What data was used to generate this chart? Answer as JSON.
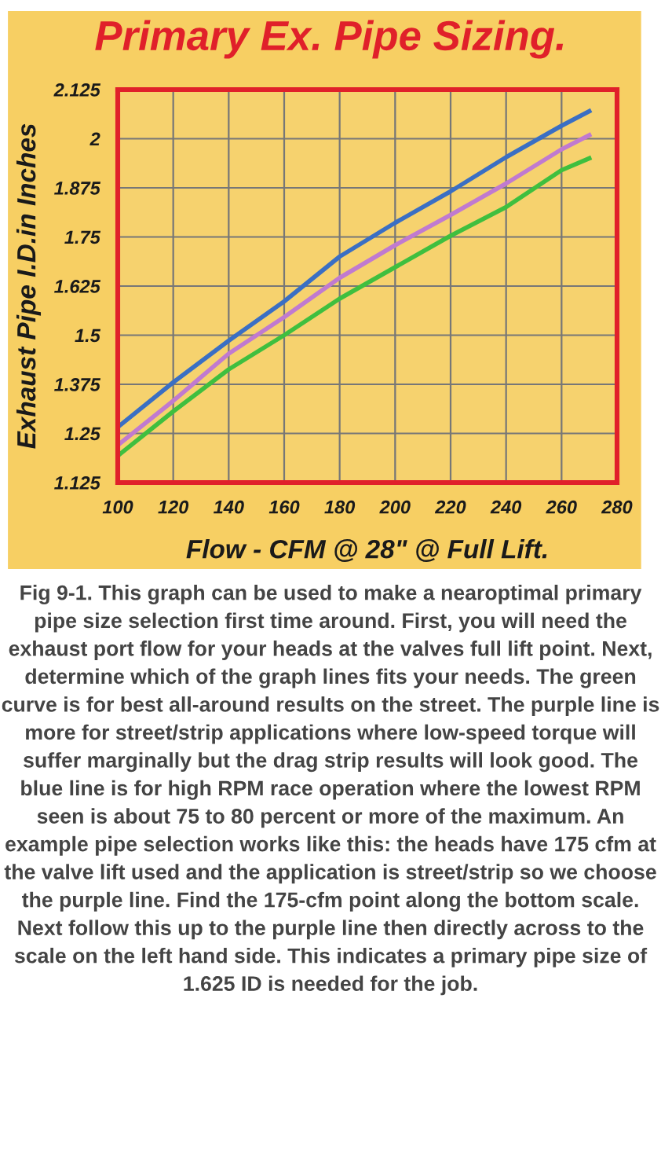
{
  "chart_data": {
    "type": "line",
    "title": "Primary Ex. Pipe Sizing.",
    "xlabel": "Flow - CFM @ 28\" @ Full Lift.",
    "ylabel": "Exhaust Pipe I.D.in Inches",
    "x": [
      100,
      120,
      140,
      160,
      180,
      200,
      220,
      240,
      260,
      270
    ],
    "series": [
      {
        "color": "#3a6fc4",
        "values": [
          1.266,
          1.38,
          1.486,
          1.586,
          1.7,
          1.786,
          1.866,
          1.953,
          2.033,
          2.07
        ]
      },
      {
        "color": "#c07ad0",
        "values": [
          1.22,
          1.333,
          1.453,
          1.546,
          1.646,
          1.729,
          1.806,
          1.886,
          1.973,
          2.009
        ]
      },
      {
        "color": "#3fbf3f",
        "values": [
          1.193,
          1.306,
          1.413,
          1.5,
          1.593,
          1.673,
          1.753,
          1.826,
          1.92,
          1.95
        ]
      }
    ],
    "xlim": [
      100,
      280
    ],
    "xticks": [
      100,
      120,
      140,
      160,
      180,
      200,
      220,
      240,
      260,
      280
    ],
    "ylim": [
      1.125,
      2.125
    ],
    "yticks": [
      1.125,
      1.25,
      1.375,
      1.5,
      1.625,
      1.75,
      1.875,
      2,
      2.125
    ],
    "grid": true,
    "legend": false,
    "marker": "none",
    "line_style": "solid",
    "annotations": [
      "Fig 9-1. This graph can be used to make a nearoptimal primary pipe size selection first time around. First, you will need the exhaust port flow for your heads at the valves full lift point. Next, determine which of the graph lines fits your needs. The green curve is for best all-around results on the street. The purple line is more for street/strip applications where low-speed torque will suffer marginally but the drag strip results will look good. The blue line is for high RPM race operation where the lowest RPM seen is about 75 to 80 percent or more of the maximum. An example pipe selection works like this: the heads have 175 cfm at the valve lift used and the application is street/strip so we choose the purple line. Find the 175-cfm point along the bottom scale. Next follow this up to the purple line then directly across to the scale on the left hand side. This indicates a primary pipe size of 1.625 ID is needed for the job."
    ]
  }
}
